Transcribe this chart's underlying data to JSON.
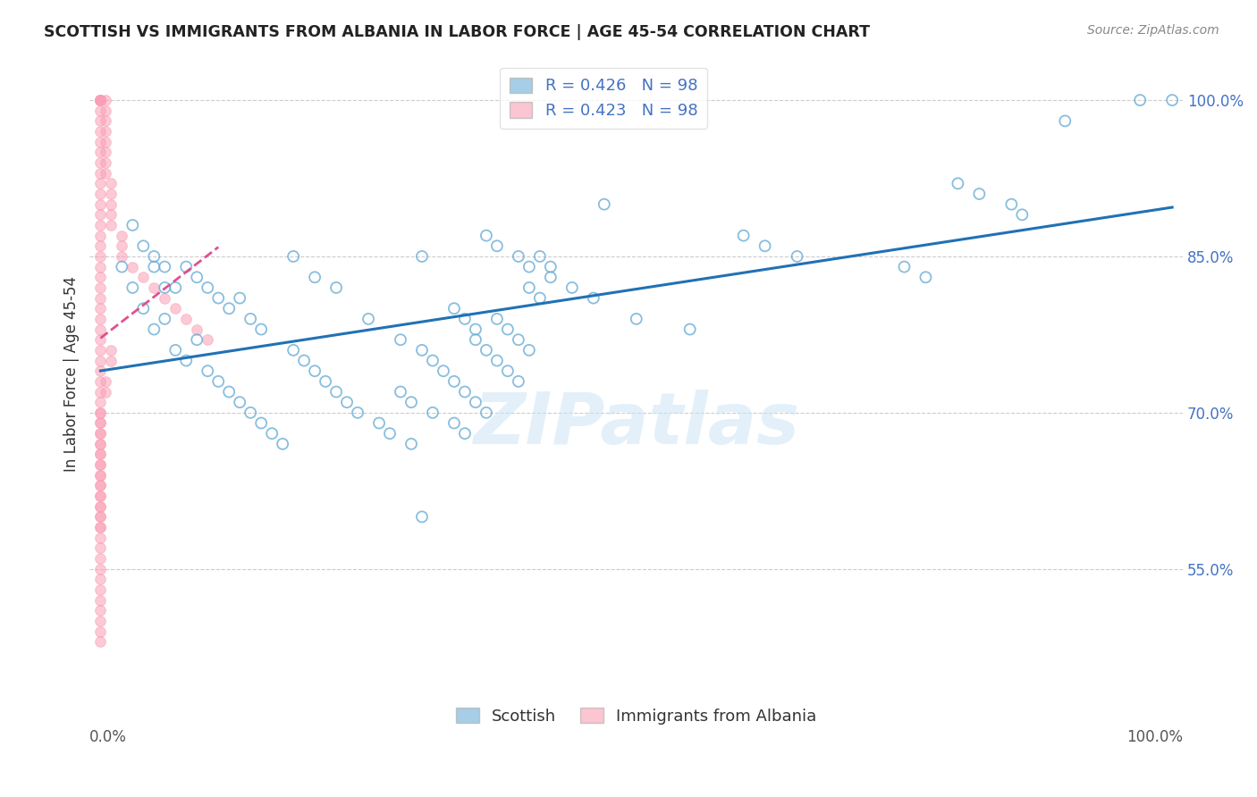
{
  "title": "SCOTTISH VS IMMIGRANTS FROM ALBANIA IN LABOR FORCE | AGE 45-54 CORRELATION CHART",
  "source": "Source: ZipAtlas.com",
  "ylabel": "In Labor Force | Age 45-54",
  "legend_labels": [
    "Scottish",
    "Immigrants from Albania"
  ],
  "legend_R": [
    0.426,
    0.423
  ],
  "legend_N": [
    98,
    98
  ],
  "ylim": [
    0.43,
    1.045
  ],
  "xlim": [
    -0.01,
    1.01
  ],
  "watermark": "ZIPatlas",
  "blue_color": "#6baed6",
  "pink_color": "#fa9fb5",
  "blue_line_color": "#2171b5",
  "pink_line_color": "#e05090",
  "background_color": "#ffffff",
  "grid_color": "#cccccc",
  "scottish_x": [
    0.02,
    0.03,
    0.04,
    0.05,
    0.05,
    0.06,
    0.06,
    0.07,
    0.07,
    0.08,
    0.08,
    0.09,
    0.09,
    0.1,
    0.1,
    0.11,
    0.11,
    0.12,
    0.12,
    0.13,
    0.13,
    0.14,
    0.14,
    0.15,
    0.15,
    0.16,
    0.17,
    0.18,
    0.18,
    0.19,
    0.2,
    0.2,
    0.21,
    0.22,
    0.22,
    0.23,
    0.24,
    0.25,
    0.26,
    0.27,
    0.28,
    0.29,
    0.3,
    0.3,
    0.31,
    0.32,
    0.33,
    0.34,
    0.35,
    0.36,
    0.37,
    0.38,
    0.39,
    0.4,
    0.41,
    0.42,
    0.28,
    0.29,
    0.3,
    0.31,
    0.33,
    0.34,
    0.35,
    0.36,
    0.37,
    0.38,
    0.39,
    0.4,
    0.41,
    0.33,
    0.34,
    0.35,
    0.36,
    0.37,
    0.39,
    0.4,
    0.42,
    0.44,
    0.46,
    0.47,
    0.5,
    0.55,
    0.6,
    0.62,
    0.65,
    0.75,
    0.77,
    0.8,
    0.82,
    0.85,
    0.86,
    0.9,
    0.97,
    1.0,
    0.03,
    0.04,
    0.05,
    0.06
  ],
  "scottish_y": [
    0.84,
    0.82,
    0.8,
    0.78,
    0.85,
    0.79,
    0.84,
    0.76,
    0.82,
    0.75,
    0.84,
    0.77,
    0.83,
    0.74,
    0.82,
    0.73,
    0.81,
    0.72,
    0.8,
    0.71,
    0.81,
    0.7,
    0.79,
    0.69,
    0.78,
    0.68,
    0.67,
    0.76,
    0.85,
    0.75,
    0.74,
    0.83,
    0.73,
    0.72,
    0.82,
    0.71,
    0.7,
    0.79,
    0.69,
    0.68,
    0.77,
    0.67,
    0.76,
    0.85,
    0.75,
    0.74,
    0.73,
    0.72,
    0.71,
    0.7,
    0.79,
    0.78,
    0.77,
    0.76,
    0.85,
    0.84,
    0.72,
    0.71,
    0.6,
    0.7,
    0.69,
    0.68,
    0.77,
    0.76,
    0.75,
    0.74,
    0.73,
    0.82,
    0.81,
    0.8,
    0.79,
    0.78,
    0.87,
    0.86,
    0.85,
    0.84,
    0.83,
    0.82,
    0.81,
    0.9,
    0.79,
    0.78,
    0.87,
    0.86,
    0.85,
    0.84,
    0.83,
    0.92,
    0.91,
    0.9,
    0.89,
    0.98,
    1.0,
    1.0,
    0.88,
    0.86,
    0.84,
    0.82
  ],
  "albania_x": [
    0.0,
    0.0,
    0.0,
    0.0,
    0.0,
    0.0,
    0.0,
    0.0,
    0.0,
    0.0,
    0.0,
    0.0,
    0.0,
    0.0,
    0.0,
    0.0,
    0.0,
    0.0,
    0.0,
    0.0,
    0.0,
    0.0,
    0.0,
    0.0,
    0.0,
    0.0,
    0.0,
    0.0,
    0.0,
    0.0,
    0.0,
    0.0,
    0.0,
    0.0,
    0.0,
    0.0,
    0.0,
    0.0,
    0.0,
    0.0,
    0.0,
    0.0,
    0.0,
    0.0,
    0.0,
    0.0,
    0.0,
    0.0,
    0.0,
    0.0,
    0.005,
    0.005,
    0.005,
    0.005,
    0.005,
    0.005,
    0.005,
    0.005,
    0.01,
    0.01,
    0.01,
    0.01,
    0.01,
    0.02,
    0.02,
    0.02,
    0.03,
    0.04,
    0.05,
    0.06,
    0.07,
    0.08,
    0.09,
    0.1,
    0.01,
    0.01,
    0.005,
    0.005,
    0.0,
    0.0,
    0.0,
    0.0,
    0.0,
    0.0,
    0.0,
    0.0,
    0.0,
    0.0,
    0.0,
    0.0,
    0.0,
    0.0,
    0.0,
    0.0,
    0.0,
    0.0,
    0.0,
    0.0
  ],
  "albania_y": [
    1.0,
    1.0,
    1.0,
    1.0,
    1.0,
    1.0,
    0.99,
    0.98,
    0.97,
    0.96,
    0.95,
    0.94,
    0.93,
    0.92,
    0.91,
    0.9,
    0.89,
    0.88,
    0.87,
    0.86,
    0.85,
    0.84,
    0.83,
    0.82,
    0.81,
    0.8,
    0.79,
    0.78,
    0.77,
    0.76,
    0.75,
    0.74,
    0.73,
    0.72,
    0.71,
    0.7,
    0.69,
    0.68,
    0.67,
    0.66,
    0.65,
    0.64,
    0.63,
    0.62,
    0.61,
    0.6,
    0.59,
    0.58,
    0.57,
    0.56,
    1.0,
    0.99,
    0.98,
    0.97,
    0.96,
    0.95,
    0.94,
    0.93,
    0.92,
    0.91,
    0.9,
    0.89,
    0.88,
    0.87,
    0.86,
    0.85,
    0.84,
    0.83,
    0.82,
    0.81,
    0.8,
    0.79,
    0.78,
    0.77,
    0.76,
    0.75,
    0.73,
    0.72,
    0.7,
    0.69,
    0.68,
    0.67,
    0.66,
    0.65,
    0.64,
    0.63,
    0.62,
    0.61,
    0.6,
    0.59,
    0.55,
    0.54,
    0.53,
    0.52,
    0.51,
    0.5,
    0.49,
    0.48
  ]
}
